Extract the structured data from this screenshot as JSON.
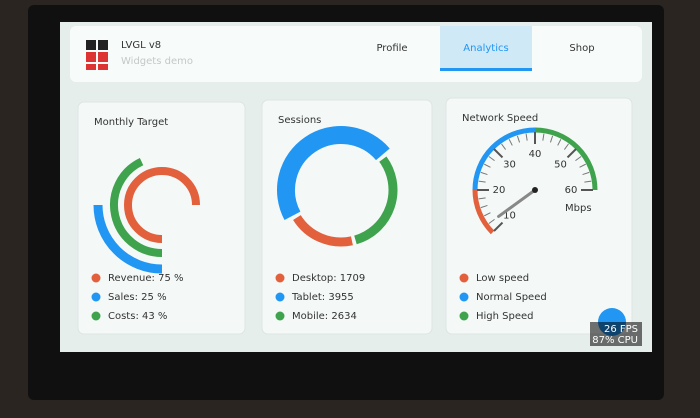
{
  "header": {
    "title": "LVGL v8",
    "subtitle": "Widgets demo",
    "tabs": [
      "Profile",
      "Analytics",
      "Shop"
    ],
    "active_tab": 1
  },
  "cards": [
    {
      "title": "Monthly Target",
      "type": "arcs",
      "series": [
        {
          "label": "Revenue: 75 %",
          "value": 75,
          "color": "#e2603c"
        },
        {
          "label": "Sales: 25 %",
          "value": 25,
          "color": "#2196f3"
        },
        {
          "label": "Costs: 43 %",
          "value": 43,
          "color": "#3fa34d"
        }
      ]
    },
    {
      "title": "Sessions",
      "type": "donut",
      "series": [
        {
          "label": "Desktop: 1709",
          "value": 1709,
          "color": "#e2603c"
        },
        {
          "label": "Tablet: 3955",
          "value": 3955,
          "color": "#2196f3"
        },
        {
          "label": "Mobile: 2634",
          "value": 2634,
          "color": "#3fa34d"
        }
      ]
    },
    {
      "title": "Network Speed",
      "type": "gauge",
      "unit": "Mbps",
      "needle": 12,
      "ticks": [
        10,
        20,
        30,
        40,
        50,
        60
      ],
      "zones": [
        {
          "from": 10,
          "to": 20,
          "color": "#e2603c"
        },
        {
          "from": 20,
          "to": 40,
          "color": "#2196f3"
        },
        {
          "from": 40,
          "to": 60,
          "color": "#3fa34d"
        }
      ],
      "series": [
        {
          "label": "Low speed",
          "color": "#e2603c"
        },
        {
          "label": "Normal Speed",
          "color": "#2196f3"
        },
        {
          "label": "High Speed",
          "color": "#3fa34d"
        }
      ]
    }
  ],
  "perf": {
    "fps": "26 FPS",
    "cpu": "87% CPU"
  }
}
